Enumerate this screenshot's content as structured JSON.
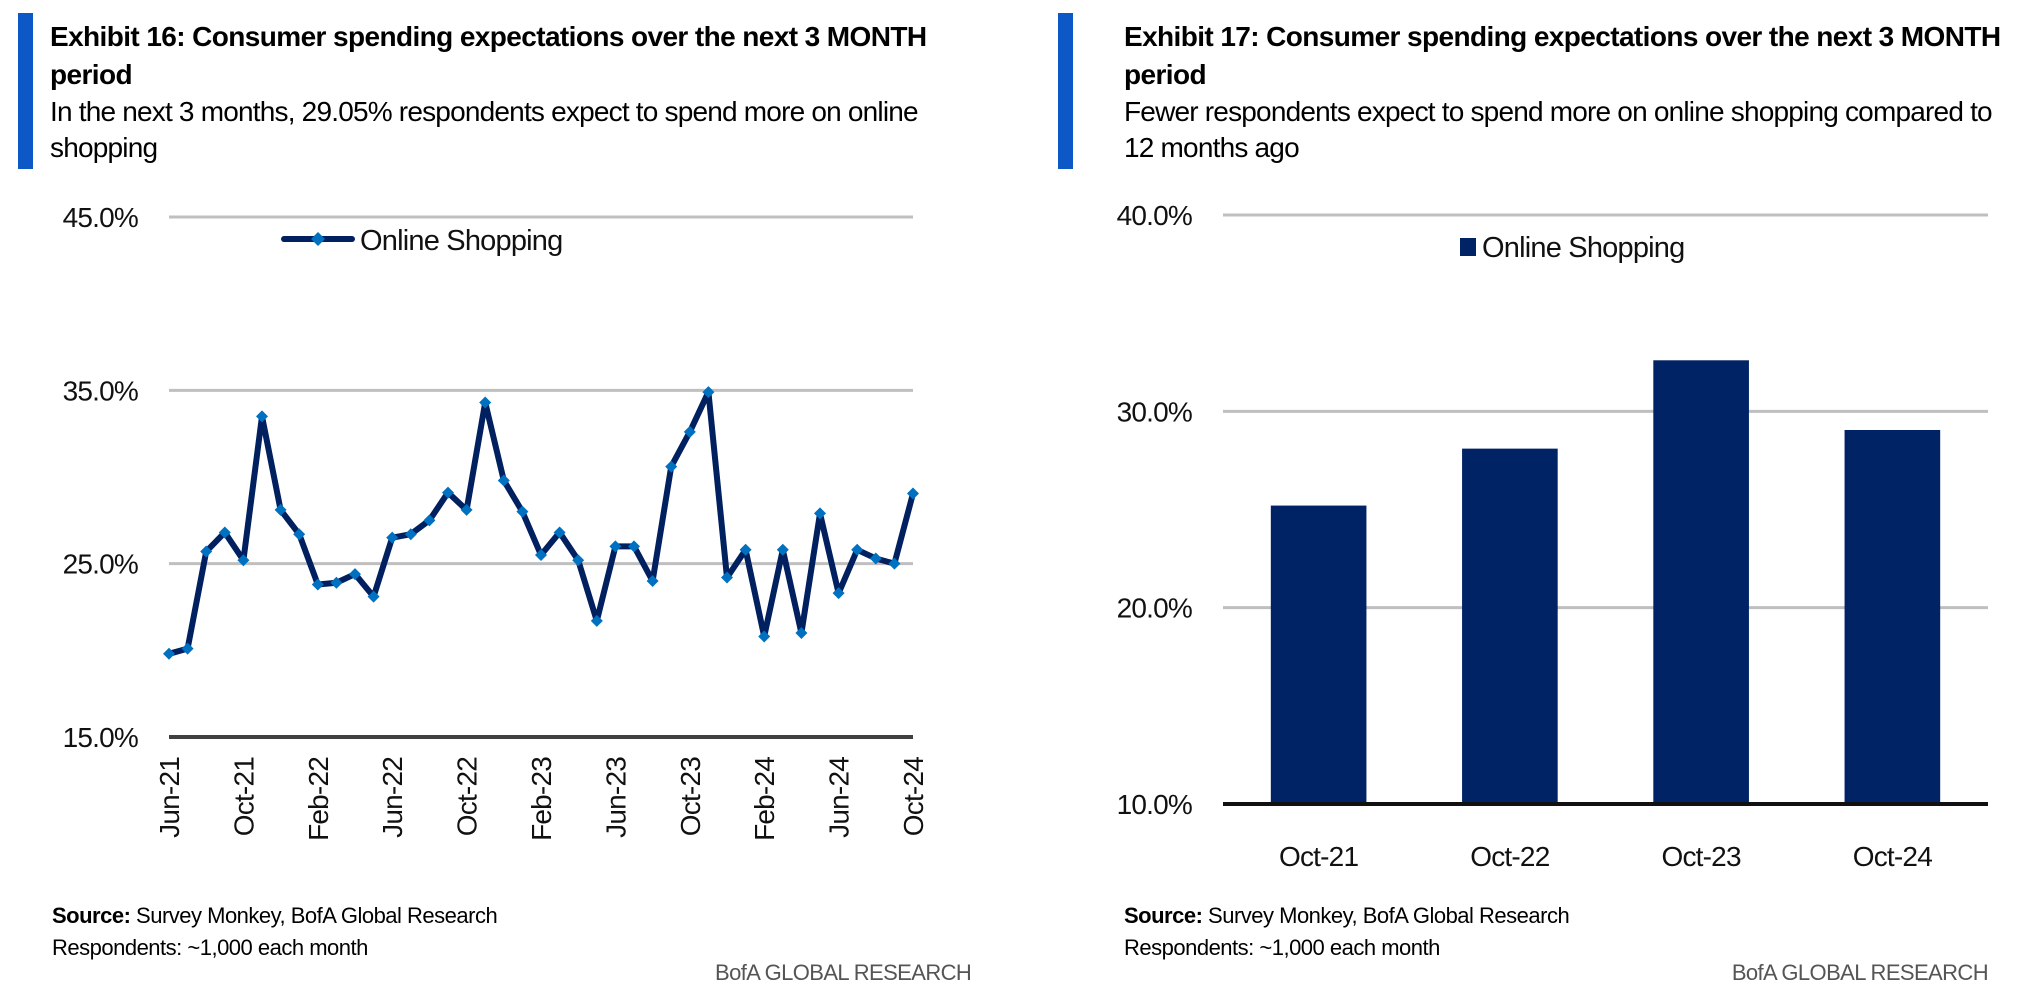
{
  "colors": {
    "accent": "#0b58c6",
    "series_line": "#002060",
    "series_marker": "#0070c0",
    "bar": "#002366",
    "gridline": "#bfbfbf",
    "baseline": "#404040",
    "brand_text": "#555555"
  },
  "exhibits": [
    {
      "title": "Exhibit 16: Consumer spending expectations over the next 3 MONTH period",
      "subtitle": "In the next 3 months, 29.05% respondents expect to spend more on online shopping",
      "source_label": "Source:",
      "source_text": " Survey Monkey, BofA Global Research",
      "note": "Respondents: ~1,000 each month",
      "brand": "BofA GLOBAL RESEARCH"
    },
    {
      "title": "Exhibit 17: Consumer spending expectations over the next 3 MONTH period",
      "subtitle": "Fewer respondents expect to spend more on online shopping compared to 12 months ago",
      "source_label": "Source:",
      "source_text": " Survey Monkey, BofA Global Research",
      "note": "Respondents: ~1,000 each month",
      "brand": "BofA GLOBAL RESEARCH"
    }
  ],
  "chart_data": [
    {
      "type": "line",
      "title": "Exhibit 16: Consumer spending expectations over the next 3 MONTH period",
      "xlabel": "",
      "ylabel": "",
      "ylim": [
        15.0,
        45.0
      ],
      "yticks": [
        15.0,
        25.0,
        35.0,
        45.0
      ],
      "ytick_labels": [
        "15.0%",
        "25.0%",
        "35.0%",
        "45.0%"
      ],
      "grid": true,
      "legend": {
        "position": "top-left",
        "entries": [
          "Online Shopping"
        ]
      },
      "x": [
        "Jun-21",
        "Jul-21",
        "Aug-21",
        "Sep-21",
        "Oct-21",
        "Nov-21",
        "Dec-21",
        "Jan-22",
        "Feb-22",
        "Mar-22",
        "Apr-22",
        "May-22",
        "Jun-22",
        "Jul-22",
        "Aug-22",
        "Sep-22",
        "Oct-22",
        "Nov-22",
        "Dec-22",
        "Jan-23",
        "Feb-23",
        "Mar-23",
        "Apr-23",
        "May-23",
        "Jun-23",
        "Jul-23",
        "Aug-23",
        "Sep-23",
        "Oct-23",
        "Nov-23",
        "Dec-23",
        "Jan-24",
        "Feb-24",
        "Mar-24",
        "Apr-24",
        "May-24",
        "Jun-24",
        "Jul-24",
        "Aug-24",
        "Sep-24",
        "Oct-24"
      ],
      "xtick_labels": [
        "Jun-21",
        "Oct-21",
        "Feb-22",
        "Jun-22",
        "Oct-22",
        "Feb-23",
        "Jun-23",
        "Oct-23",
        "Feb-24",
        "Jun-24",
        "Oct-24"
      ],
      "xtick_every": 4,
      "series": [
        {
          "name": "Online Shopping",
          "values": [
            19.8,
            20.1,
            25.7,
            26.8,
            25.2,
            33.5,
            28.1,
            26.7,
            23.8,
            23.9,
            24.4,
            23.1,
            26.5,
            26.7,
            27.5,
            29.1,
            28.1,
            34.3,
            29.8,
            28.0,
            25.5,
            26.8,
            25.2,
            21.7,
            26.0,
            26.0,
            24.0,
            30.6,
            32.6,
            34.9,
            24.2,
            25.8,
            20.8,
            25.8,
            21.0,
            27.9,
            23.3,
            25.8,
            25.3,
            25.0,
            29.05
          ]
        }
      ]
    },
    {
      "type": "bar",
      "title": "Exhibit 17: Consumer spending expectations over the next 3 MONTH period",
      "xlabel": "",
      "ylabel": "",
      "ylim": [
        10.0,
        40.0
      ],
      "yticks": [
        10.0,
        20.0,
        30.0,
        40.0
      ],
      "ytick_labels": [
        "10.0%",
        "20.0%",
        "30.0%",
        "40.0%"
      ],
      "grid": true,
      "legend": {
        "position": "top-center",
        "entries": [
          "Online Shopping"
        ]
      },
      "categories": [
        "Oct-21",
        "Oct-22",
        "Oct-23",
        "Oct-24"
      ],
      "series": [
        {
          "name": "Online Shopping",
          "values": [
            25.2,
            28.1,
            32.6,
            29.05
          ]
        }
      ]
    }
  ]
}
